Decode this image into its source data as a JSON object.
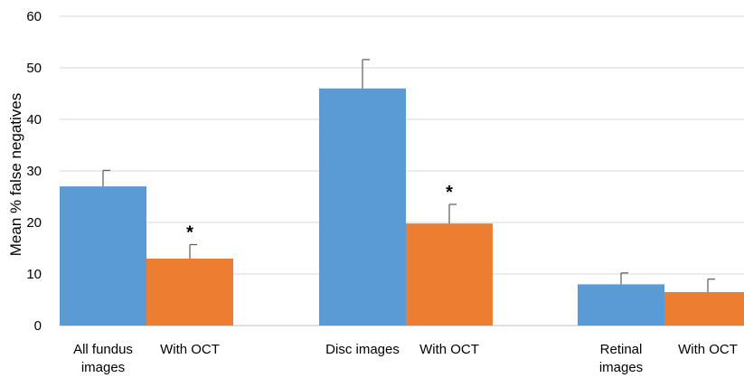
{
  "chart_data": {
    "type": "bar",
    "title": "",
    "xlabel": "",
    "ylabel": "Mean % false negatives",
    "ylim": [
      0,
      60
    ],
    "yticks": [
      0,
      10,
      20,
      30,
      40,
      50,
      60
    ],
    "grid": true,
    "legend": "none",
    "groups": [
      {
        "bars": [
          {
            "label": "All fundus images",
            "value": 27,
            "error": 3.1,
            "color": "#5b9bd5",
            "significant": false
          },
          {
            "label": "With OCT",
            "value": 13,
            "error": 2.7,
            "color": "#ed7d31",
            "significant": true
          }
        ]
      },
      {
        "bars": [
          {
            "label": "Disc images",
            "value": 46,
            "error": 5.6,
            "color": "#5b9bd5",
            "significant": false
          },
          {
            "label": "With OCT",
            "value": 19.8,
            "error": 3.7,
            "color": "#ed7d31",
            "significant": true
          }
        ]
      },
      {
        "bars": [
          {
            "label": "Retinal images",
            "value": 8,
            "error": 2.2,
            "color": "#5b9bd5",
            "significant": false
          },
          {
            "label": "With OCT",
            "value": 6.5,
            "error": 2.5,
            "color": "#ed7d31",
            "significant": false
          }
        ]
      }
    ],
    "annotation_symbol": "*"
  }
}
